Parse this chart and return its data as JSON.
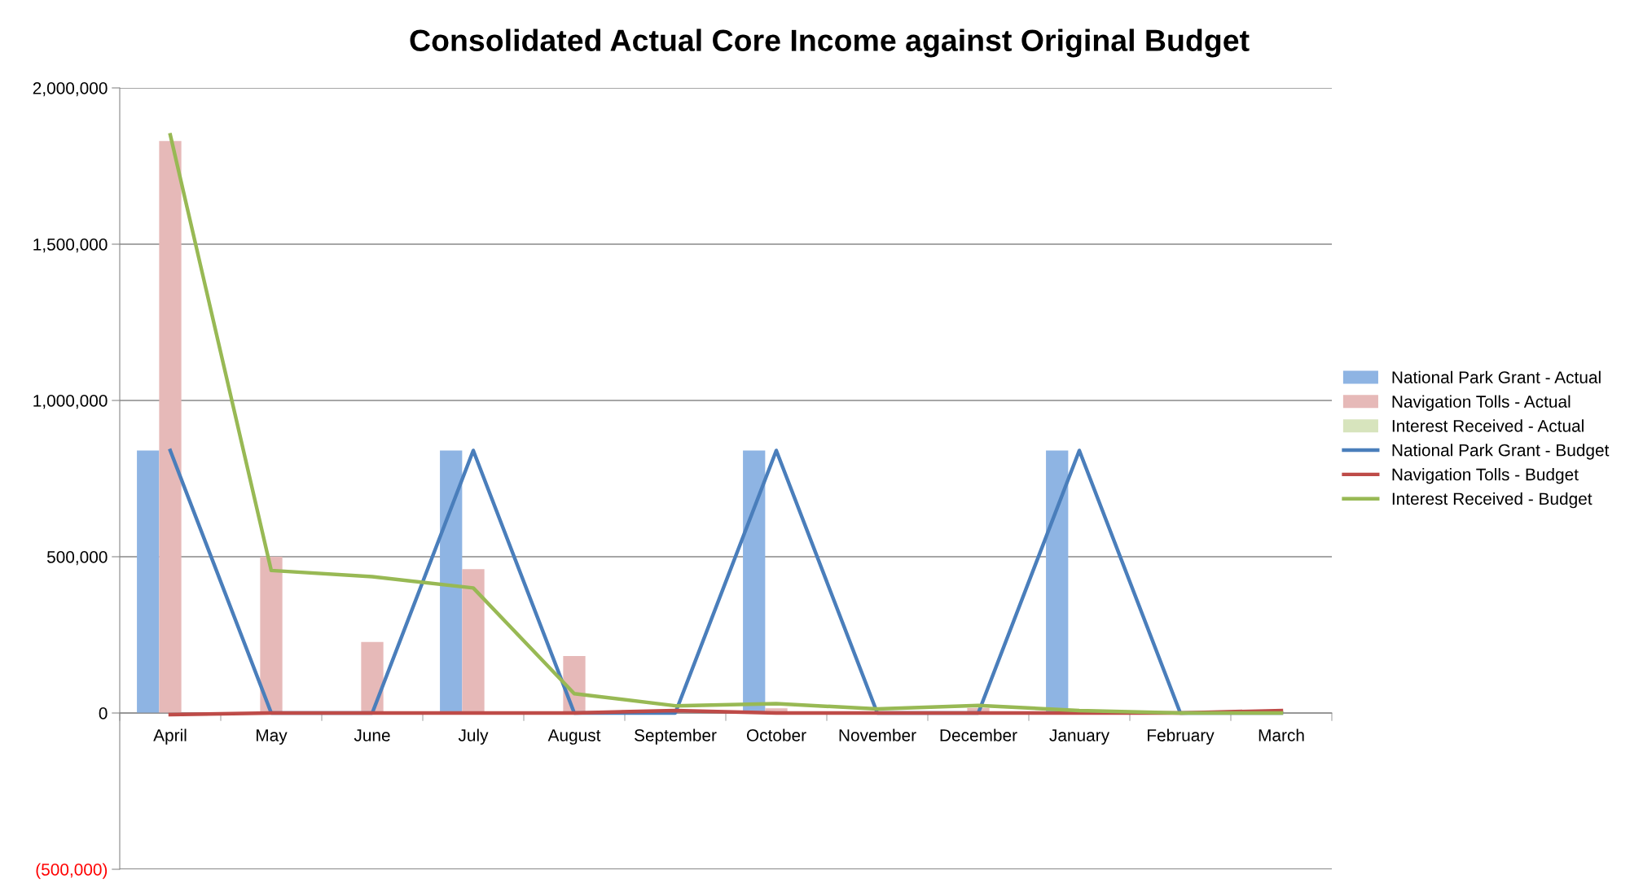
{
  "chart_data": {
    "type": "bar",
    "title": "Consolidated Actual Core Income against Original Budget",
    "categories": [
      "April",
      "May",
      "June",
      "July",
      "August",
      "September",
      "October",
      "November",
      "December",
      "January",
      "February",
      "March"
    ],
    "series": [
      {
        "name": "National Park Grant - Actual",
        "color": "#8eb4e3",
        "values": [
          840000,
          0,
          0,
          840000,
          0,
          0,
          840000,
          0,
          0,
          840000,
          0,
          0
        ]
      },
      {
        "name": "Navigation Tolls - Actual",
        "color": "#e6b9b8",
        "values": [
          1830000,
          500000,
          227000,
          460000,
          182000,
          null,
          15000,
          null,
          16000,
          null,
          0,
          0
        ]
      },
      {
        "name": "Interest Received - Actual",
        "color": "#d7e4bd",
        "values": [
          0,
          0,
          0,
          0,
          0,
          0,
          0,
          null,
          0,
          null,
          0,
          0
        ]
      },
      {
        "name": "National Park Grant - Budget",
        "type": "line",
        "color": "#4a7ebb",
        "values": [
          840000,
          0,
          0,
          840000,
          0,
          0,
          840000,
          0,
          0,
          840000,
          0,
          0
        ]
      },
      {
        "name": "Navigation Tolls - Budget",
        "type": "line",
        "color": "#be4b48",
        "values": [
          -5000,
          0,
          0,
          0,
          0,
          8000,
          0,
          0,
          0,
          0,
          0,
          8000
        ]
      },
      {
        "name": "Interest Received - Budget",
        "type": "line",
        "color": "#98b954",
        "values": [
          1850000,
          456000,
          436000,
          400000,
          62000,
          23000,
          30000,
          13000,
          24000,
          8000,
          0,
          0
        ]
      }
    ],
    "ylim": [
      -500000,
      2000000
    ],
    "yticks": [
      {
        "value": -500000,
        "label": "(500,000)"
      },
      {
        "value": 0,
        "label": "0"
      },
      {
        "value": 500000,
        "label": "500,000"
      },
      {
        "value": 1000000,
        "label": "1,000,000"
      },
      {
        "value": 1500000,
        "label": "1,500,000"
      },
      {
        "value": 2000000,
        "label": "2,000,000"
      }
    ],
    "grid": "y",
    "legend": "right"
  }
}
